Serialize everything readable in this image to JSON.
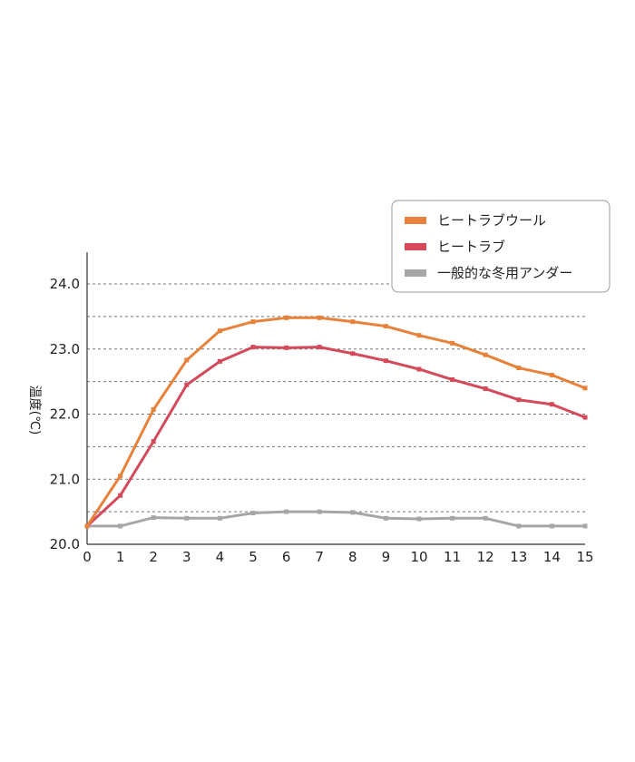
{
  "chart_data": {
    "type": "line",
    "title": "",
    "xlabel": "",
    "ylabel": "温度(℃)",
    "x": [
      0,
      1,
      2,
      3,
      4,
      5,
      6,
      7,
      8,
      9,
      10,
      11,
      12,
      13,
      14,
      15
    ],
    "xlim": [
      0,
      15
    ],
    "ylim": [
      20.0,
      24.0
    ],
    "y_tick_labels": [
      "20.0",
      "21.0",
      "22.0",
      "23.0",
      "24.0"
    ],
    "y_ticks": [
      20.0,
      21.0,
      22.0,
      23.0,
      24.0
    ],
    "grid": "dashed horizontal at every 0.5",
    "legend_position": "top-right",
    "series": [
      {
        "name": "ヒートラブウール",
        "color": "#E8823A",
        "values": [
          20.28,
          21.05,
          22.07,
          22.83,
          23.28,
          23.42,
          23.48,
          23.48,
          23.42,
          23.35,
          23.21,
          23.09,
          22.91,
          22.71,
          22.6,
          22.4
        ]
      },
      {
        "name": "ヒートラブ",
        "color": "#D44A5A",
        "values": [
          20.28,
          20.75,
          21.58,
          22.45,
          22.81,
          23.03,
          23.02,
          23.03,
          22.93,
          22.82,
          22.69,
          22.53,
          22.39,
          22.22,
          22.15,
          21.95
        ]
      },
      {
        "name": "一般的な冬用アンダー",
        "color": "#A6A6A6",
        "values": [
          20.28,
          20.28,
          20.41,
          20.4,
          20.4,
          20.48,
          20.5,
          20.5,
          20.49,
          20.4,
          20.39,
          20.4,
          20.4,
          20.28,
          20.28,
          20.28
        ]
      }
    ]
  }
}
